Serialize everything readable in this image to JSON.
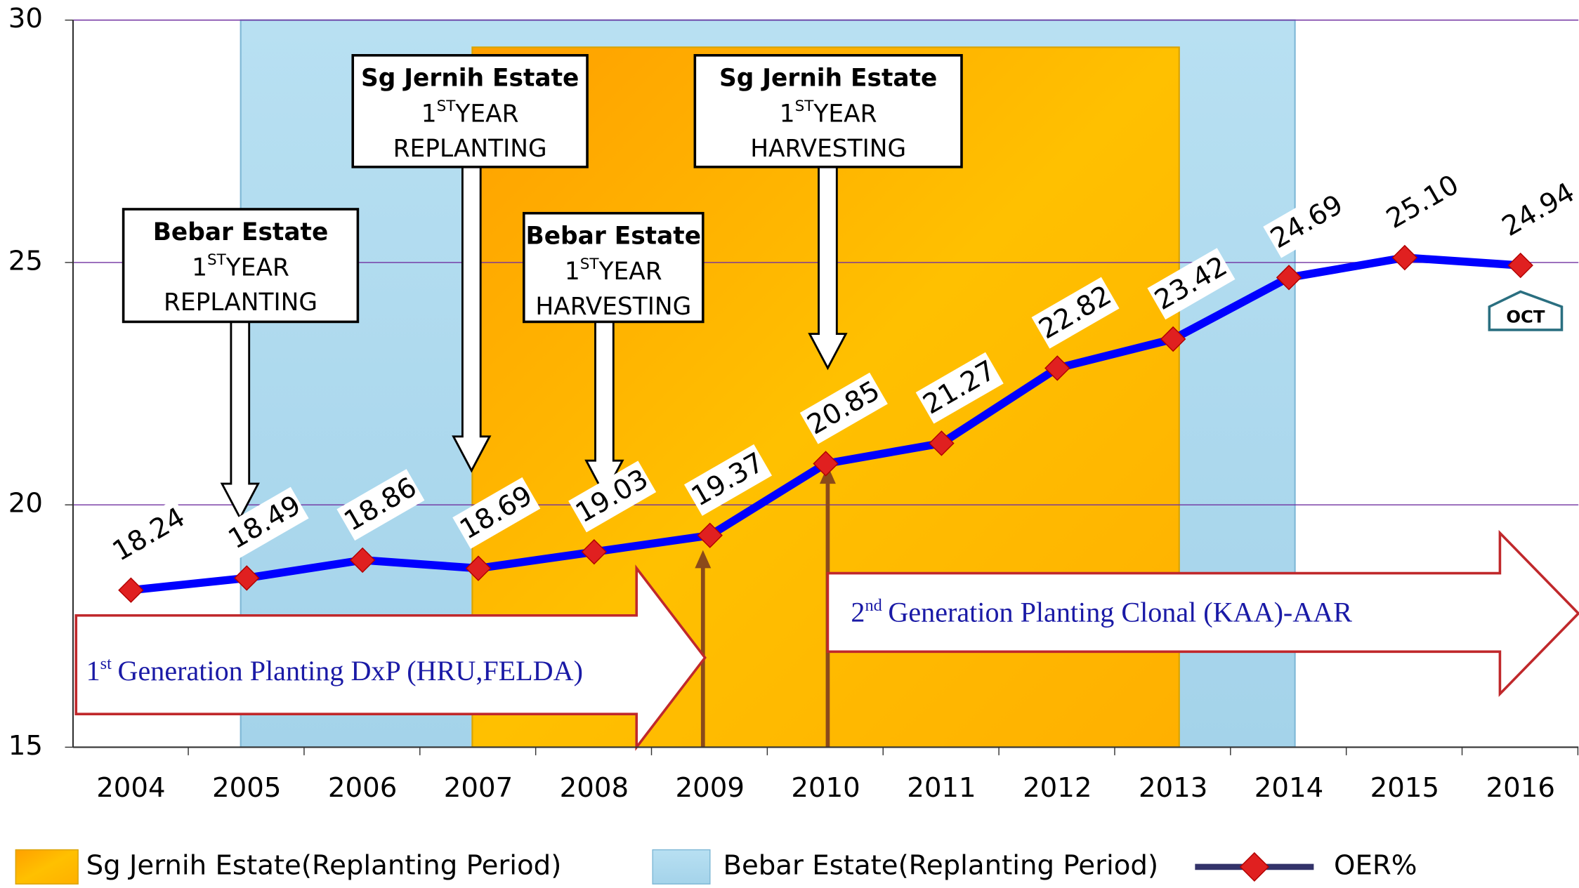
{
  "chart_data": {
    "type": "line",
    "x": [
      2004,
      2005,
      2006,
      2007,
      2008,
      2009,
      2010,
      2011,
      2012,
      2013,
      2014,
      2015,
      2016
    ],
    "xlim": [
      2003.5,
      2016.5
    ],
    "xticks": [
      2004,
      2005,
      2006,
      2007,
      2008,
      2009,
      2010,
      2011,
      2012,
      2013,
      2014,
      2015,
      2016
    ],
    "ylim": [
      15,
      30
    ],
    "yticks": [
      15,
      20,
      25,
      30
    ],
    "grid": true,
    "grid_color": "#7030a0",
    "series": [
      {
        "name": "OER%",
        "color": "#0000ff",
        "marker_color": "#e02020",
        "values": [
          18.24,
          18.49,
          18.86,
          18.69,
          19.03,
          19.37,
          20.85,
          21.27,
          22.82,
          23.42,
          24.69,
          25.1,
          24.94
        ],
        "value_labels": [
          "18.24",
          "18.49",
          "18.86",
          "18.69",
          "19.03",
          "19.37",
          "20.85",
          "21.27",
          "22.82",
          "23.42",
          "24.69",
          "25.10",
          "24.94"
        ]
      }
    ],
    "shaded_regions": [
      {
        "name": "Sg Jernih Estate(Replanting Period)",
        "start": 2007,
        "end": 2013,
        "color": "#ffb400"
      },
      {
        "name": "Bebar Estate(Replanting Period)",
        "start": 2005,
        "end": 2014,
        "color": "#add8ee"
      }
    ],
    "callouts": [
      {
        "estate": "Bebar Estate",
        "estate_color": "#0000ff",
        "ordinal": "1",
        "suffix": "ST",
        "text": "YEAR",
        "phase": "REPLANTING"
      },
      {
        "estate": "Sg Jernih Estate",
        "estate_color": "#00a050",
        "ordinal": "1",
        "suffix": "ST",
        "text": "YEAR",
        "phase": "REPLANTING"
      },
      {
        "estate": "Bebar Estate",
        "estate_color": "#0000ff",
        "ordinal": "1",
        "suffix": "ST",
        "text": "YEAR",
        "phase": "HARVESTING"
      },
      {
        "estate": "Sg Jernih Estate",
        "estate_color": "#00a050",
        "ordinal": "1",
        "suffix": "ST",
        "text": "YEAR",
        "phase": "HARVESTING"
      }
    ],
    "banners": [
      {
        "ordinal": "1",
        "suffix": "st",
        "text": "Generation Planting DxP (HRU,FELDA)"
      },
      {
        "ordinal": "2",
        "suffix": "nd",
        "text": "Generation Planting Clonal (KAA)-AAR"
      }
    ],
    "annotations": [
      {
        "text": "OCT"
      }
    ]
  }
}
